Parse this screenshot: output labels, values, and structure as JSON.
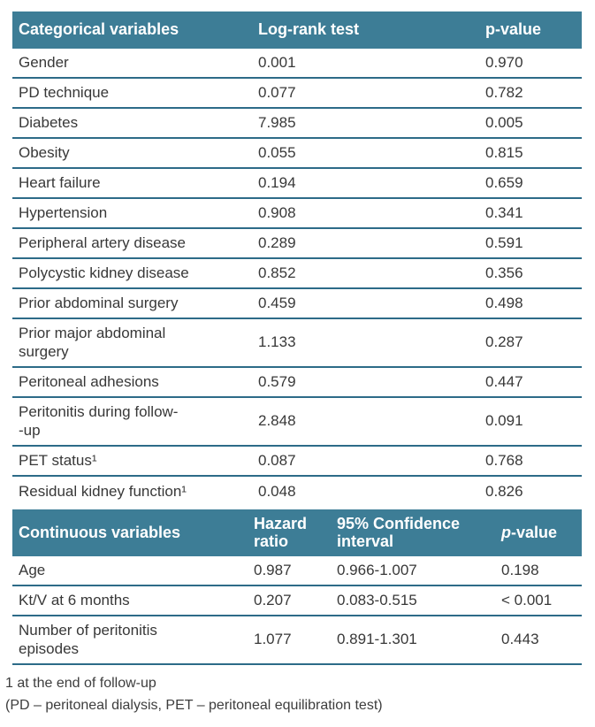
{
  "colors": {
    "header_bg": "#3d7d96",
    "divider": "#2d6b88",
    "body_text": "#383838",
    "header_text": "#ffffff"
  },
  "categorical": {
    "headers": [
      "Categorical variables",
      "Log-rank test",
      "p-value"
    ],
    "rows": [
      {
        "variable": "Gender",
        "logrank": "0.001",
        "pvalue": "0.970"
      },
      {
        "variable": "PD technique",
        "logrank": "0.077",
        "pvalue": "0.782"
      },
      {
        "variable": "Diabetes",
        "logrank": "7.985",
        "pvalue": "0.005"
      },
      {
        "variable": "Obesity",
        "logrank": "0.055",
        "pvalue": "0.815"
      },
      {
        "variable": "Heart failure",
        "logrank": "0.194",
        "pvalue": "0.659"
      },
      {
        "variable": "Hypertension",
        "logrank": "0.908",
        "pvalue": "0.341"
      },
      {
        "variable": "Peripheral artery disease",
        "logrank": "0.289",
        "pvalue": "0.591"
      },
      {
        "variable": "Polycystic kidney disease",
        "logrank": "0.852",
        "pvalue": "0.356"
      },
      {
        "variable": "Prior abdominal surgery",
        "logrank": "0.459",
        "pvalue": "0.498"
      },
      {
        "variable": "Prior major abdominal\nsurgery",
        "logrank": "1.133",
        "pvalue": "0.287"
      },
      {
        "variable": "Peritoneal adhesions",
        "logrank": "0.579",
        "pvalue": "0.447"
      },
      {
        "variable": "Peritonitis during follow-\n-up",
        "logrank": "2.848",
        "pvalue": "0.091"
      },
      {
        "variable": "PET status¹",
        "logrank": "0.087",
        "pvalue": "0.768"
      },
      {
        "variable": "Residual kidney function¹",
        "logrank": "0.048",
        "pvalue": "0.826"
      }
    ]
  },
  "continuous": {
    "headers": {
      "variables": "Continuous variables",
      "hazard": "Hazard\nratio",
      "ci": "95% Confidence\ninterval",
      "p_italic": "p",
      "p_rest": "-value"
    },
    "rows": [
      {
        "variable": "Age",
        "hazard": "0.987",
        "ci": "0.966-1.007",
        "pvalue": "0.198"
      },
      {
        "variable": "Kt/V at 6 months",
        "hazard": "0.207",
        "ci": "0.083-0.515",
        "pvalue": "< 0.001"
      },
      {
        "variable": "Number of peritonitis\nepisodes",
        "hazard": "1.077",
        "ci": "0.891-1.301",
        "pvalue": "0.443"
      }
    ]
  },
  "footnotes": [
    "1 at the end of follow-up",
    "(PD – peritoneal dialysis, PET – peritoneal equilibration test)"
  ]
}
